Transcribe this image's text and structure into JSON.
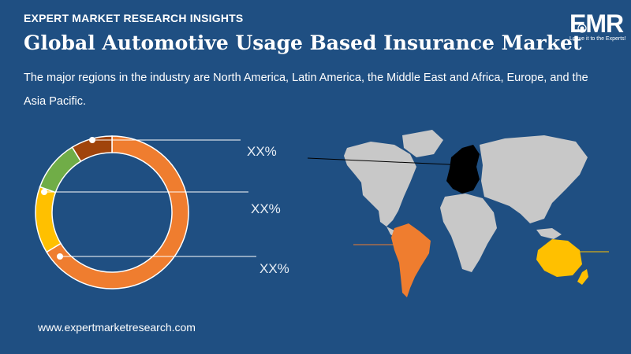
{
  "header": {
    "eyebrow": "EXPERT MARKET RESEARCH INSIGHTS",
    "title": "Global Automotive Usage Based Insurance Market",
    "description": "The major regions in the industry are North America, Latin America, the Middle East and Africa, Europe, and the Asia Pacific."
  },
  "logo": {
    "text": "EMR",
    "tagline": "Leave it to the Experts!"
  },
  "footer": {
    "url": "www.expertmarketresearch.com"
  },
  "colors": {
    "background": "#1f4f82",
    "map_land": "#c8c8c8",
    "europe": "#000000",
    "latin_america": "#ef7d2f",
    "asia_pacific": "#ffc000"
  },
  "chart_data": {
    "type": "pie",
    "donut": true,
    "slices": [
      {
        "value": 61,
        "color": "#ef7d2f"
      },
      {
        "value": 13,
        "color": "#ffc000"
      },
      {
        "value": 10,
        "color": "#70ad47"
      },
      {
        "value": 8,
        "color": "#a0440c"
      }
    ],
    "labels": [
      "XX%",
      "XX%",
      "XX%"
    ]
  }
}
